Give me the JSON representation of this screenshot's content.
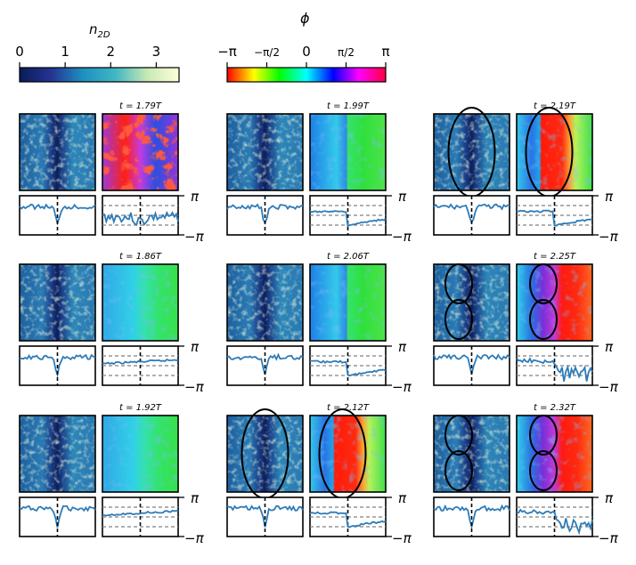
{
  "chart_data": {
    "type": "heatmap",
    "colorbars": [
      {
        "label": "n₂D",
        "label_main": "n",
        "label_sub": "2D",
        "ticks": [
          "0",
          "1",
          "2",
          "3"
        ],
        "range": [
          0,
          3.5
        ],
        "colormap": "YlGnBu_r"
      },
      {
        "label": "ϕ",
        "ticks": [
          "−π",
          "−π/2",
          "0",
          "π/2",
          "π"
        ],
        "range": [
          -3.1416,
          3.1416
        ],
        "colormap": "hsv"
      }
    ],
    "panels": [
      {
        "time": "t = 1.79T",
        "phase_pattern": "turbulent",
        "rings": 0
      },
      {
        "time": "t = 1.86T",
        "phase_pattern": "smooth",
        "rings": 0
      },
      {
        "time": "t = 1.92T",
        "phase_pattern": "smooth",
        "rings": 0
      },
      {
        "time": "t = 1.99T",
        "phase_pattern": "step",
        "rings": 0
      },
      {
        "time": "t = 2.06T",
        "phase_pattern": "step",
        "rings": 0
      },
      {
        "time": "t = 2.12T",
        "phase_pattern": "step",
        "rings": 1
      },
      {
        "time": "t = 2.19T",
        "phase_pattern": "step",
        "rings": 1
      },
      {
        "time": "t = 2.25T",
        "phase_pattern": "vortex",
        "rings": 2
      },
      {
        "time": "t = 2.32T",
        "phase_pattern": "vortex",
        "rings": 2
      }
    ],
    "profile_axis": {
      "top": "π",
      "bottom": "−π"
    }
  },
  "colors": {
    "profile_line": "#2e7cb8",
    "dashed": "#808080",
    "ring": "#000000"
  }
}
